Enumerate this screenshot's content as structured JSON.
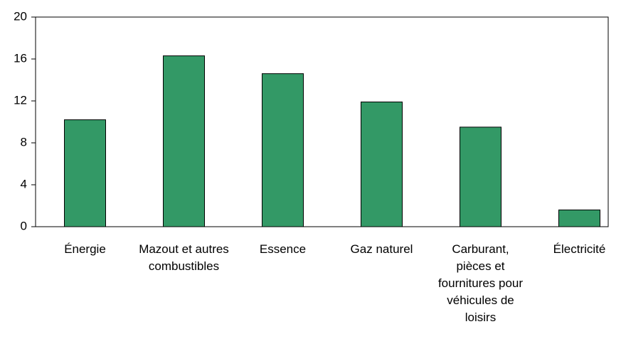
{
  "chart_data": {
    "type": "bar",
    "categories": [
      "Énergie",
      "Mazout et autres combustibles",
      "Essence",
      "Gaz naturel",
      "Carburant, pièces et fournitures pour véhicules de loisirs",
      "Électricité"
    ],
    "values": [
      10.2,
      16.3,
      14.6,
      11.9,
      9.5,
      1.6
    ],
    "color": "#339966",
    "ylim": [
      0,
      20
    ],
    "yticks": [
      0,
      4,
      8,
      12,
      16,
      20
    ],
    "grid": false
  }
}
